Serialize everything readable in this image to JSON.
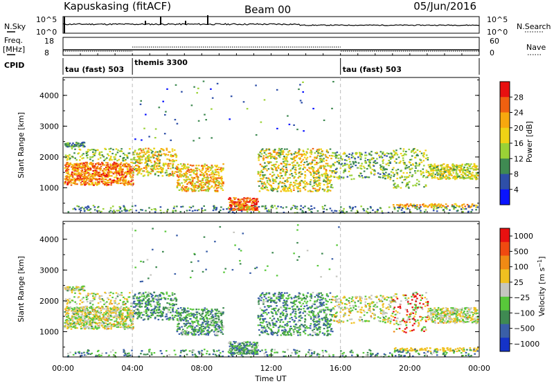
{
  "header": {
    "station": "Kapuskasing (fitACF)",
    "beam": "Beam 00",
    "date": "05/Jun/2016"
  },
  "strips": {
    "nsky_label": "N.Sky",
    "nsky_ticks": [
      "10^5",
      "10^0"
    ],
    "nsearch_label": "N.Search",
    "nsearch_ticks": [
      "10^5",
      "10^0"
    ],
    "freq_label_1": "Freq.",
    "freq_label_2": "[MHz]",
    "freq_ticks": [
      "18",
      "8"
    ],
    "nave_label": "Nave",
    "nave_ticks": [
      "60",
      "0"
    ],
    "cpid_label": "CPID",
    "cpid_segments": [
      {
        "label": "tau (fast) 503",
        "start_hour": 0,
        "end_hour": 4
      },
      {
        "label": "themis 3300",
        "start_hour": 4,
        "end_hour": 16
      },
      {
        "label": "tau (fast) 503",
        "start_hour": 16,
        "end_hour": 24
      }
    ]
  },
  "chart_data": [
    {
      "type": "heatmap",
      "ylabel": "Slant Range [km]",
      "yticks": [
        "1000",
        "2000",
        "3000",
        "4000"
      ],
      "ytick_values": [
        1000,
        2000,
        3000,
        4000
      ],
      "ylim": [
        180,
        4580
      ],
      "xlim": [
        0,
        24
      ],
      "colorbar_label": "Power [dB]",
      "colorbar_ticks": [
        "4",
        "8",
        "12",
        "16",
        "20",
        "24",
        "28"
      ],
      "colorbar_colors": [
        "#0a14ff",
        "#2e4fa8",
        "#3f8a52",
        "#9ad236",
        "#f0d215",
        "#f7a80e",
        "#f06010",
        "#e81010"
      ],
      "colorbar_range": [
        0,
        32
      ]
    },
    {
      "type": "heatmap",
      "ylabel": "Slant Range [km]",
      "yticks": [
        "1000",
        "2000",
        "3000",
        "4000"
      ],
      "ytick_values": [
        1000,
        2000,
        3000,
        4000
      ],
      "ylim": [
        180,
        4580
      ],
      "xlim": [
        0,
        24
      ],
      "colorbar_label": "Velocity [m s^-1]",
      "colorbar_ticks": [
        "1000",
        "500",
        "100",
        "25",
        "−25",
        "−100",
        "−500",
        "−1000"
      ],
      "colorbar_colors": [
        "#1533c8",
        "#3a5fa8",
        "#3f8a52",
        "#58c83a",
        "#c6c6c0",
        "#f0c020",
        "#f08a14",
        "#f04a10",
        "#e81010"
      ]
    }
  ],
  "xaxis": {
    "label": "Time UT",
    "ticks": [
      "00:00",
      "04:00",
      "08:00",
      "12:00",
      "16:00",
      "20:00",
      "00:00"
    ],
    "tick_hours": [
      0,
      4,
      8,
      12,
      16,
      20,
      24
    ]
  }
}
